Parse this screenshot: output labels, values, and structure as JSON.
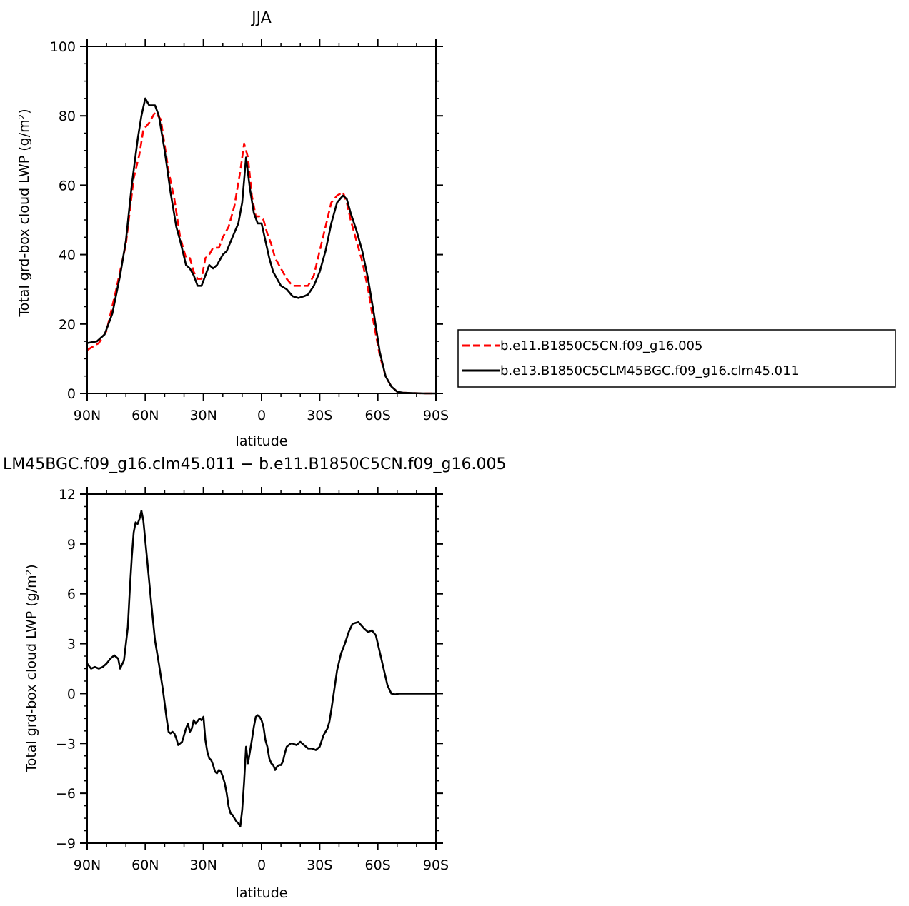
{
  "panels": [
    {
      "title": "JJA",
      "xlabel": "latitude",
      "ylabel": "Total grd-box cloud LWP (g/m²)",
      "x_ticks": [
        {
          "v": 90,
          "label": "90N"
        },
        {
          "v": 60,
          "label": "60N"
        },
        {
          "v": 30,
          "label": "30N"
        },
        {
          "v": 0,
          "label": "0"
        },
        {
          "v": -30,
          "label": "30S"
        },
        {
          "v": -60,
          "label": "60S"
        },
        {
          "v": -90,
          "label": "90S"
        }
      ],
      "y_ticks": [
        {
          "v": 0,
          "label": "0"
        },
        {
          "v": 20,
          "label": "20"
        },
        {
          "v": 40,
          "label": "40"
        },
        {
          "v": 60,
          "label": "60"
        },
        {
          "v": 80,
          "label": "80"
        },
        {
          "v": 100,
          "label": "100"
        }
      ]
    },
    {
      "title": "LM45BGC.f09_g16.clm45.011 − b.e11.B1850C5CN.f09_g16.005",
      "xlabel": "latitude",
      "ylabel": "Total grd-box cloud LWP (g/m²)",
      "x_ticks": [
        {
          "v": 90,
          "label": "90N"
        },
        {
          "v": 60,
          "label": "60N"
        },
        {
          "v": 30,
          "label": "30N"
        },
        {
          "v": 0,
          "label": "0"
        },
        {
          "v": -30,
          "label": "30S"
        },
        {
          "v": -60,
          "label": "60S"
        },
        {
          "v": -90,
          "label": "90S"
        }
      ],
      "y_ticks": [
        {
          "v": -9,
          "label": "−9"
        },
        {
          "v": -6,
          "label": "−6"
        },
        {
          "v": -3,
          "label": "−3"
        },
        {
          "v": 0,
          "label": "0"
        },
        {
          "v": 3,
          "label": "3"
        },
        {
          "v": 6,
          "label": "6"
        },
        {
          "v": 9,
          "label": "9"
        },
        {
          "v": 12,
          "label": "12"
        }
      ]
    }
  ],
  "legend": [
    {
      "label": "b.e11.B1850C5CN.f09_g16.005",
      "color": "#ff0000",
      "dash": true
    },
    {
      "label": "b.e13.B1850C5CLM45BGC.f09_g16.clm45.011",
      "color": "#000000",
      "dash": false
    }
  ],
  "chart_data": [
    {
      "type": "line",
      "title": "JJA",
      "xlabel": "latitude",
      "ylabel": "Total grd-box cloud LWP (g/m²)",
      "xlim": [
        90,
        -90
      ],
      "ylim": [
        0,
        100
      ],
      "series": [
        {
          "name": "b.e11.B1850C5CN.f09_g16.005",
          "color": "#ff0000",
          "style": "dashed",
          "x": [
            90,
            84,
            80,
            75,
            70,
            66,
            63,
            61,
            58,
            55,
            52,
            48,
            45,
            42,
            39,
            37,
            35,
            33,
            31,
            29,
            27,
            25,
            22,
            20,
            17,
            14,
            11,
            9,
            7,
            5,
            3,
            1,
            -1,
            -3,
            -5,
            -7,
            -10,
            -13,
            -16,
            -20,
            -24,
            -27,
            -30,
            -33,
            -36,
            -39,
            -42,
            -44,
            -46,
            -49,
            -52,
            -55,
            -58,
            -61,
            -64,
            -67,
            -70,
            -73,
            -78,
            -84,
            -90
          ],
          "y": [
            12.5,
            14.5,
            18,
            30,
            43,
            62,
            69,
            76,
            78,
            81,
            79,
            64,
            56,
            45,
            39,
            39,
            35,
            33,
            33,
            39,
            40,
            42,
            42,
            45,
            48,
            54,
            64,
            72,
            68,
            57,
            51,
            51,
            50,
            46,
            43,
            39,
            36,
            33,
            31,
            31,
            31,
            34,
            41,
            48,
            55,
            57,
            58,
            55,
            50,
            44,
            38,
            30,
            20,
            11,
            5,
            2,
            0.5,
            0.2,
            0.1,
            0,
            0
          ]
        },
        {
          "name": "b.e13.B1850C5CLM45BGC.f09_g16.clm45.011",
          "color": "#000000",
          "style": "solid",
          "x": [
            90,
            85,
            81,
            77,
            73,
            70,
            67,
            64,
            62,
            60,
            58,
            55,
            53,
            50,
            47,
            44,
            42,
            39,
            37,
            35,
            33,
            31,
            29,
            27,
            25,
            23,
            20,
            18,
            15,
            12,
            10,
            8,
            6,
            4,
            2,
            0,
            -2,
            -4,
            -6,
            -8,
            -10,
            -13,
            -16,
            -19,
            -22,
            -24,
            -27,
            -30,
            -33,
            -36,
            -39,
            -42,
            -44,
            -46,
            -49,
            -52,
            -55,
            -58,
            -61,
            -64,
            -67,
            -70,
            -73,
            -78,
            -84,
            -90
          ],
          "y": [
            14.5,
            15,
            17,
            23,
            34,
            44,
            60,
            73,
            80,
            85,
            83,
            83,
            80,
            70,
            58,
            48,
            44,
            37,
            36,
            34,
            31,
            31,
            34,
            37,
            36,
            37,
            40,
            41,
            45,
            49,
            55,
            68,
            59,
            52,
            49,
            49,
            44,
            39,
            35,
            33,
            31,
            30,
            28,
            27.5,
            28,
            28.5,
            31,
            35,
            41,
            49,
            55,
            57,
            56,
            52,
            47,
            41,
            33,
            23,
            12,
            5,
            2,
            0.5,
            0.2,
            0.1,
            0,
            0
          ]
        }
      ]
    },
    {
      "type": "line",
      "title": "LM45BGC.f09_g16.clm45.011 − b.e11.B1850C5CN.f09_g16.005",
      "xlabel": "latitude",
      "ylabel": "Total grd-box cloud LWP (g/m²)",
      "xlim": [
        90,
        -90
      ],
      "ylim": [
        -9,
        12
      ],
      "series": [
        {
          "name": "",
          "color": "#000000",
          "style": "solid",
          "x": [
            90,
            88,
            86,
            84,
            82,
            80,
            78,
            76,
            75,
            74,
            73,
            71,
            69,
            68,
            67,
            66,
            65,
            64,
            63,
            62,
            61,
            59,
            57,
            55,
            53,
            51,
            49,
            48,
            47,
            46,
            45,
            44,
            43,
            42,
            41,
            39,
            38,
            37,
            36,
            35,
            34,
            32,
            31,
            30,
            29,
            28,
            27,
            26,
            25,
            24,
            23,
            22,
            21,
            20,
            19,
            18,
            17,
            16,
            15,
            14,
            13,
            12,
            11,
            10,
            9,
            8,
            7,
            6,
            5,
            4,
            3,
            2,
            1,
            0,
            -1,
            -2,
            -3,
            -4,
            -5,
            -6,
            -7,
            -8,
            -9,
            -10,
            -11,
            -12,
            -13,
            -14,
            -15,
            -16,
            -18,
            -20,
            -22,
            -24,
            -26,
            -28,
            -30,
            -32,
            -34,
            -35,
            -36,
            -37,
            -39,
            -41,
            -43,
            -45,
            -47,
            -50,
            -53,
            -55,
            -57,
            -59,
            -61,
            -63,
            -65,
            -67,
            -69,
            -71,
            -75,
            -80,
            -85,
            -90
          ],
          "y": [
            1.8,
            1.5,
            1.6,
            1.5,
            1.6,
            1.8,
            2.1,
            2.3,
            2.2,
            2.1,
            1.5,
            2.0,
            4.0,
            6.2,
            8.2,
            9.7,
            10.3,
            10.2,
            10.5,
            11.0,
            10.4,
            8.0,
            5.5,
            3.2,
            1.8,
            0.3,
            -1.5,
            -2.3,
            -2.4,
            -2.3,
            -2.4,
            -2.7,
            -3.1,
            -3.0,
            -2.9,
            -2.1,
            -1.8,
            -2.3,
            -2.1,
            -1.6,
            -1.8,
            -1.5,
            -1.6,
            -1.4,
            -2.8,
            -3.5,
            -3.9,
            -4.0,
            -4.3,
            -4.7,
            -4.8,
            -4.6,
            -4.7,
            -5.0,
            -5.4,
            -6.0,
            -6.8,
            -7.2,
            -7.3,
            -7.5,
            -7.7,
            -7.8,
            -8.0,
            -7.0,
            -5.3,
            -3.2,
            -4.2,
            -3.5,
            -2.8,
            -2.0,
            -1.4,
            -1.3,
            -1.4,
            -1.6,
            -2.0,
            -2.8,
            -3.2,
            -3.9,
            -4.2,
            -4.3,
            -4.6,
            -4.4,
            -4.3,
            -4.3,
            -4.1,
            -3.6,
            -3.2,
            -3.1,
            -3.0,
            -3.0,
            -3.1,
            -2.9,
            -3.1,
            -3.3,
            -3.3,
            -3.4,
            -3.2,
            -2.5,
            -2.1,
            -1.7,
            -1.0,
            -0.2,
            1.4,
            2.4,
            3.0,
            3.7,
            4.2,
            4.3,
            3.9,
            3.7,
            3.8,
            3.5,
            2.5,
            1.5,
            0.5,
            0.0,
            -0.05,
            0.0,
            0.0,
            0.0,
            0.0,
            0.0
          ]
        }
      ]
    }
  ]
}
